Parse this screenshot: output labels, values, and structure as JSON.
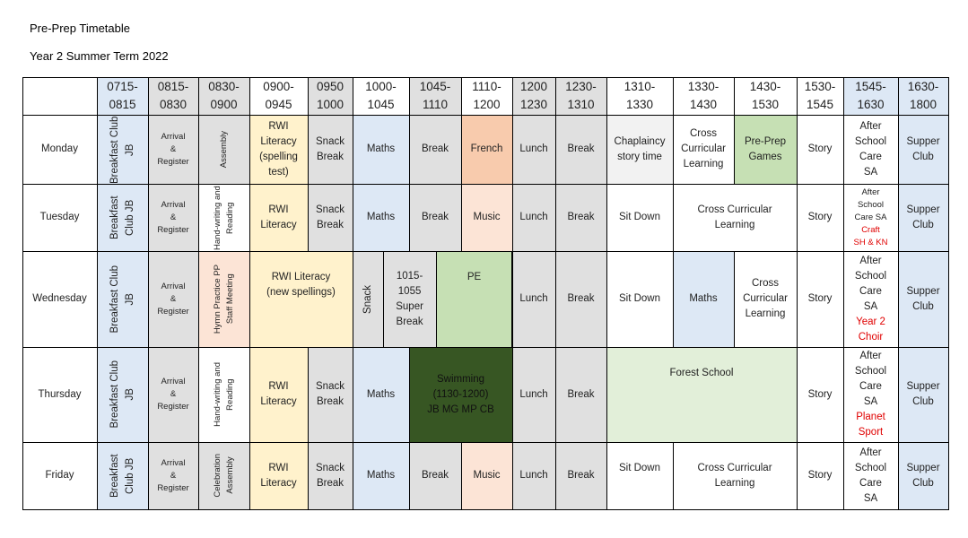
{
  "title": "Pre-Prep Timetable",
  "subtitle": "Year 2 Summer Term 2022",
  "table": {
    "header": [
      "0715-\n0815",
      "0815-\n0830",
      "0830-\n0900",
      "0900-\n0945",
      "0950\n1000",
      "1000-\n1045",
      "1045-\n1110",
      "1110-\n1200",
      "1200\n1230",
      "1230-\n1310",
      "1310-\n1330",
      "1330-\n1430",
      "1430-\n1530",
      "1530-\n1545",
      "1545-\n1630",
      "1630-\n1800"
    ],
    "rows": [
      {
        "day": "Monday",
        "cells": [
          {
            "text": "Breakfast Club JB"
          },
          {
            "text": "Arrival\n&\nRegister"
          },
          {
            "text": "Assembly"
          },
          {
            "text": "RWI\nLiteracy\n(spelling\ntest)"
          },
          {
            "text": "Snack\nBreak"
          },
          {
            "text": "Maths"
          },
          {
            "text": "Break"
          },
          {
            "text": "French"
          },
          {
            "text": "Lunch"
          },
          {
            "text": "Break"
          },
          {
            "text": "Chaplaincy\nstory time"
          },
          {
            "text": "Cross\nCurricular\nLearning"
          },
          {
            "text": "Pre-Prep\nGames"
          },
          {
            "text": "Story"
          },
          {
            "text": "After\nSchool\nCare\nSA"
          },
          {
            "text": "Supper\nClub"
          }
        ]
      },
      {
        "day": "Tuesday",
        "cells": [
          {
            "text": "Breakfast Club JB"
          },
          {
            "text": "Arrival\n&\nRegister"
          },
          {
            "text": "Hand-writing and Reading"
          },
          {
            "text": "RWI\nLiteracy"
          },
          {
            "text": "Snack\nBreak"
          },
          {
            "text": "Maths"
          },
          {
            "text": "Break"
          },
          {
            "text": "Music"
          },
          {
            "text": "Lunch"
          },
          {
            "text": "Break"
          },
          {
            "text": "Sit Down"
          },
          {
            "text": "Cross Curricular\nLearning"
          },
          {
            "text": "Story"
          },
          {
            "text": "After\nSchool\nCare SA",
            "note": "Craft\nSH & KN"
          },
          {
            "text": "Supper\nClub"
          }
        ]
      },
      {
        "day": "Wednesday",
        "cells": [
          {
            "text": "Breakfast Club\nJB"
          },
          {
            "text": "Arrival\n&\nRegister"
          },
          {
            "text": "Hymn Practice PP\nStaff Meeting"
          },
          {
            "text": "RWI Literacy\n(new spellings)"
          },
          {
            "text": "Snack"
          },
          {
            "text": "1015-\n1055\nSuper\nBreak"
          },
          {
            "text": "PE"
          },
          {
            "text": "Lunch"
          },
          {
            "text": "Break"
          },
          {
            "text": "Sit Down"
          },
          {
            "text": "Maths"
          },
          {
            "text": "Cross\nCurricular\nLearning"
          },
          {
            "text": "Story"
          },
          {
            "text": "After\nSchool\nCare\nSA",
            "note": "Year 2\nChoir"
          },
          {
            "text": "Supper\nClub"
          }
        ]
      },
      {
        "day": "Thursday",
        "cells": [
          {
            "text": "Breakfast Club\nJB"
          },
          {
            "text": "Arrival\n&\nRegister"
          },
          {
            "text": "Hand-writing and\nReading"
          },
          {
            "text": "RWI\nLiteracy"
          },
          {
            "text": "Snack\nBreak"
          },
          {
            "text": "Maths"
          },
          {
            "text": "Swimming\n(1130-1200)\nJB MG MP CB"
          },
          {
            "text": "Lunch"
          },
          {
            "text": "Break"
          },
          {
            "text": "Forest School"
          },
          {
            "text": "Story"
          },
          {
            "text": "After\nSchool\nCare\nSA",
            "note": "Planet\nSport"
          },
          {
            "text": "Supper\nClub"
          }
        ]
      },
      {
        "day": "Friday",
        "cells": [
          {
            "text": "Breakfast Club JB"
          },
          {
            "text": "Arrival\n&\nRegister"
          },
          {
            "text": "Celebration\nAssembly"
          },
          {
            "text": "RWI\nLiteracy"
          },
          {
            "text": "Snack\nBreak"
          },
          {
            "text": "Maths"
          },
          {
            "text": "Break"
          },
          {
            "text": "Music"
          },
          {
            "text": "Lunch"
          },
          {
            "text": "Break"
          },
          {
            "text": "Sit Down"
          },
          {
            "text": "Cross Curricular\nLearning"
          },
          {
            "text": "Story"
          },
          {
            "text": "After\nSchool\nCare\nSA"
          },
          {
            "text": "Supper\nClub"
          }
        ]
      }
    ]
  }
}
